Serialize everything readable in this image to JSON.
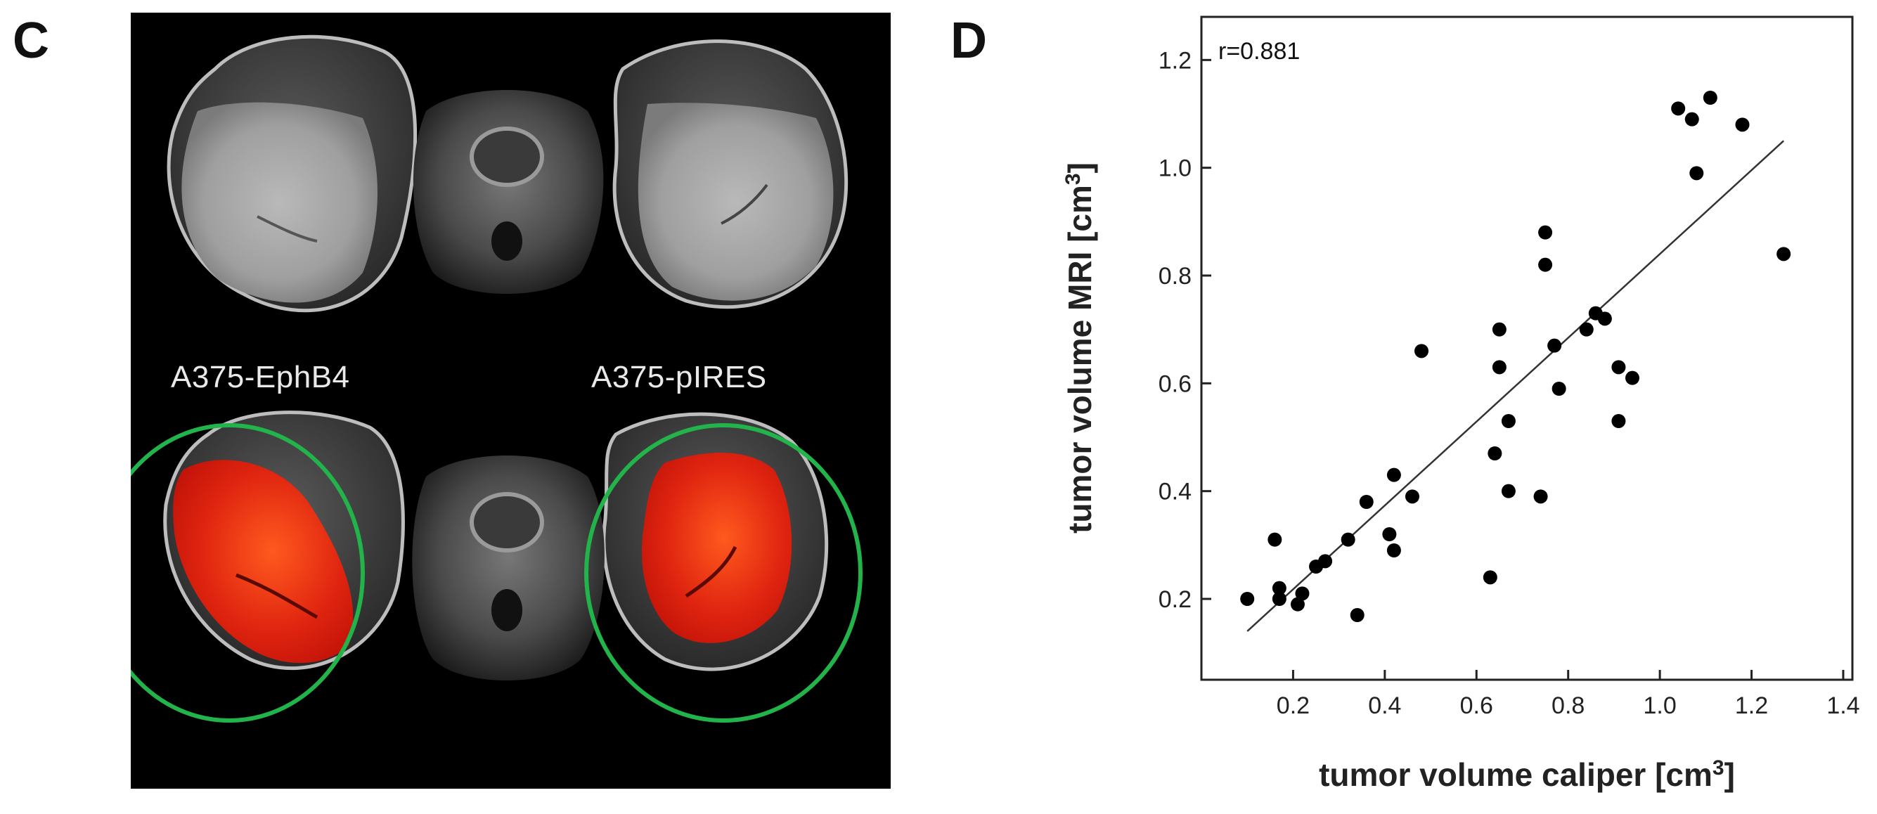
{
  "panels": {
    "c_letter": "C",
    "d_letter": "D"
  },
  "mri": {
    "left_label": "A375-EphB4",
    "right_label": "A375-pIRES",
    "roi_color": "#22b34a",
    "tumor_overlay_color": "#e01f0e"
  },
  "chart_data": {
    "type": "scatter",
    "title": "",
    "xlabel": "tumor volume caliper [cm³]",
    "ylabel": "tumor volume MRI [cm³]",
    "xlim": [
      0.0,
      1.42
    ],
    "ylim": [
      0.05,
      1.28
    ],
    "xticks": [
      0.2,
      0.4,
      0.6,
      0.8,
      1.0,
      1.2,
      1.4
    ],
    "yticks": [
      0.2,
      0.4,
      0.6,
      0.8,
      1.0,
      1.2
    ],
    "annotation": "r=0.881",
    "grid": false,
    "legend": "none",
    "points": [
      {
        "x": 0.1,
        "y": 0.2
      },
      {
        "x": 0.16,
        "y": 0.31
      },
      {
        "x": 0.17,
        "y": 0.22
      },
      {
        "x": 0.17,
        "y": 0.2
      },
      {
        "x": 0.21,
        "y": 0.19
      },
      {
        "x": 0.22,
        "y": 0.21
      },
      {
        "x": 0.25,
        "y": 0.26
      },
      {
        "x": 0.27,
        "y": 0.27
      },
      {
        "x": 0.32,
        "y": 0.31
      },
      {
        "x": 0.34,
        "y": 0.17
      },
      {
        "x": 0.36,
        "y": 0.38
      },
      {
        "x": 0.41,
        "y": 0.32
      },
      {
        "x": 0.42,
        "y": 0.29
      },
      {
        "x": 0.42,
        "y": 0.43
      },
      {
        "x": 0.46,
        "y": 0.39
      },
      {
        "x": 0.48,
        "y": 0.66
      },
      {
        "x": 0.63,
        "y": 0.24
      },
      {
        "x": 0.64,
        "y": 0.47
      },
      {
        "x": 0.65,
        "y": 0.7
      },
      {
        "x": 0.65,
        "y": 0.63
      },
      {
        "x": 0.67,
        "y": 0.53
      },
      {
        "x": 0.67,
        "y": 0.4
      },
      {
        "x": 0.74,
        "y": 0.39
      },
      {
        "x": 0.75,
        "y": 0.88
      },
      {
        "x": 0.75,
        "y": 0.82
      },
      {
        "x": 0.77,
        "y": 0.67
      },
      {
        "x": 0.78,
        "y": 0.59
      },
      {
        "x": 0.84,
        "y": 0.7
      },
      {
        "x": 0.86,
        "y": 0.73
      },
      {
        "x": 0.88,
        "y": 0.72
      },
      {
        "x": 0.91,
        "y": 0.53
      },
      {
        "x": 0.91,
        "y": 0.63
      },
      {
        "x": 0.94,
        "y": 0.61
      },
      {
        "x": 1.04,
        "y": 1.11
      },
      {
        "x": 1.07,
        "y": 1.09
      },
      {
        "x": 1.08,
        "y": 0.99
      },
      {
        "x": 1.11,
        "y": 1.13
      },
      {
        "x": 1.18,
        "y": 1.08
      },
      {
        "x": 1.27,
        "y": 0.84
      }
    ],
    "fit_line": {
      "x": [
        0.1,
        1.27
      ],
      "y": [
        0.14,
        1.05
      ]
    }
  }
}
